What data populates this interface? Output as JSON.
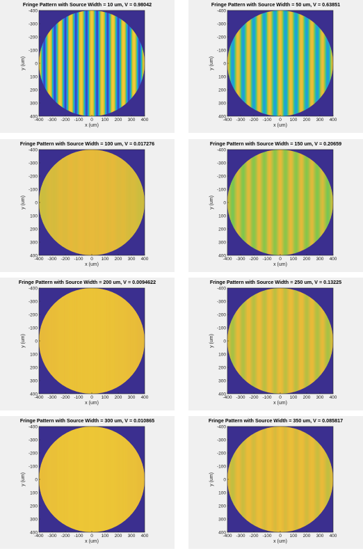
{
  "colors": {
    "background_dark": "#3b2f8f",
    "colormap": [
      "#3e26a8",
      "#2c86f0",
      "#16bfb6",
      "#86c64a",
      "#e7b93a",
      "#f5d930"
    ]
  },
  "chart_data": [
    {
      "type": "heatmap",
      "title": "Fringe Pattern with Source Width = 10 um, V = 0.98042",
      "xlabel": "x (um)",
      "ylabel": "y (um)",
      "xlim": [
        -400,
        400
      ],
      "ylim": [
        -400,
        400
      ],
      "y_reversed": true,
      "aperture_radius": 400,
      "x_ticks": [
        "-400",
        "-300",
        "-200",
        "-100",
        "0",
        "100",
        "200",
        "300",
        "400"
      ],
      "y_ticks": [
        "-400",
        "-300",
        "-200",
        "-100",
        "0",
        "100",
        "200",
        "300",
        "400"
      ],
      "fringe_count": 10,
      "visibility": 0.98042,
      "mean_level": 0.5
    },
    {
      "type": "heatmap",
      "title": "Fringe Pattern with Source Width = 50 um, V = 0.63851",
      "xlabel": "x (um)",
      "ylabel": "y (um)",
      "xlim": [
        -400,
        400
      ],
      "ylim": [
        -400,
        400
      ],
      "y_reversed": true,
      "aperture_radius": 400,
      "x_ticks": [
        "-400",
        "-300",
        "-200",
        "-100",
        "0",
        "100",
        "200",
        "300",
        "400"
      ],
      "y_ticks": [
        "-400",
        "-300",
        "-200",
        "-100",
        "0",
        "100",
        "200",
        "300",
        "400"
      ],
      "fringe_count": 10,
      "visibility": 0.63851,
      "mean_level": 0.55
    },
    {
      "type": "heatmap",
      "title": "Fringe Pattern with Source Width = 100 um, V = 0.017276",
      "xlabel": "x (um)",
      "ylabel": "y (um)",
      "xlim": [
        -400,
        400
      ],
      "ylim": [
        -400,
        400
      ],
      "y_reversed": true,
      "aperture_radius": 400,
      "x_ticks": [
        "-400",
        "-300",
        "-200",
        "-100",
        "0",
        "100",
        "200",
        "300",
        "400"
      ],
      "y_ticks": [
        "-400",
        "-300",
        "-200",
        "-100",
        "0",
        "100",
        "200",
        "300",
        "400"
      ],
      "fringe_count": 10,
      "visibility": 0.017276,
      "mean_level": 0.74
    },
    {
      "type": "heatmap",
      "title": "Fringe Pattern with Source Width = 150 um, V = 0.20659",
      "xlabel": "x (um)",
      "ylabel": "y (um)",
      "xlim": [
        -400,
        400
      ],
      "ylim": [
        -400,
        400
      ],
      "y_reversed": true,
      "aperture_radius": 400,
      "x_ticks": [
        "-400",
        "-300",
        "-200",
        "-100",
        "0",
        "100",
        "200",
        "300",
        "400"
      ],
      "y_ticks": [
        "-400",
        "-300",
        "-200",
        "-100",
        "0",
        "100",
        "200",
        "300",
        "400"
      ],
      "fringe_count": 10,
      "visibility": 0.20659,
      "mean_level": 0.66
    },
    {
      "type": "heatmap",
      "title": "Fringe Pattern with Source Width = 200 um, V = 0.0094622",
      "xlabel": "x (um)",
      "ylabel": "y (um)",
      "xlim": [
        -400,
        400
      ],
      "ylim": [
        -400,
        400
      ],
      "y_reversed": true,
      "aperture_radius": 400,
      "x_ticks": [
        "-400",
        "-300",
        "-200",
        "-100",
        "0",
        "100",
        "200",
        "300",
        "400"
      ],
      "y_ticks": [
        "-400",
        "-300",
        "-200",
        "-100",
        "0",
        "100",
        "200",
        "300",
        "400"
      ],
      "fringe_count": 10,
      "visibility": 0.0094622,
      "mean_level": 0.8
    },
    {
      "type": "heatmap",
      "title": "Fringe Pattern with Source Width = 250 um, V = 0.13225",
      "xlabel": "x (um)",
      "ylabel": "y (um)",
      "xlim": [
        -400,
        400
      ],
      "ylim": [
        -400,
        400
      ],
      "y_reversed": true,
      "aperture_radius": 400,
      "x_ticks": [
        "-400",
        "-300",
        "-200",
        "-100",
        "0",
        "100",
        "200",
        "300",
        "400"
      ],
      "y_ticks": [
        "-400",
        "-300",
        "-200",
        "-100",
        "0",
        "100",
        "200",
        "300",
        "400"
      ],
      "fringe_count": 10,
      "visibility": 0.13225,
      "mean_level": 0.72
    },
    {
      "type": "heatmap",
      "title": "Fringe Pattern with Source Width = 300 um, V = 0.010865",
      "xlabel": "x (um)",
      "ylabel": "y (um)",
      "xlim": [
        -400,
        400
      ],
      "ylim": [
        -400,
        400
      ],
      "y_reversed": true,
      "aperture_radius": 400,
      "x_ticks": [
        "-400",
        "-300",
        "-200",
        "-100",
        "0",
        "100",
        "200",
        "300",
        "400"
      ],
      "y_ticks": [
        "-400",
        "-300",
        "-200",
        "-100",
        "0",
        "100",
        "200",
        "300",
        "400"
      ],
      "fringe_count": 10,
      "visibility": 0.010865,
      "mean_level": 0.82
    },
    {
      "type": "heatmap",
      "title": "Fringe Pattern with Source Width = 350 um, V = 0.085817",
      "xlabel": "x (um)",
      "ylabel": "y (um)",
      "xlim": [
        -400,
        400
      ],
      "ylim": [
        -400,
        400
      ],
      "y_reversed": true,
      "aperture_radius": 400,
      "x_ticks": [
        "-400",
        "-300",
        "-200",
        "-100",
        "0",
        "100",
        "200",
        "300",
        "400"
      ],
      "y_ticks": [
        "-400",
        "-300",
        "-200",
        "-100",
        "0",
        "100",
        "200",
        "300",
        "400"
      ],
      "fringe_count": 10,
      "visibility": 0.085817,
      "mean_level": 0.75
    }
  ]
}
